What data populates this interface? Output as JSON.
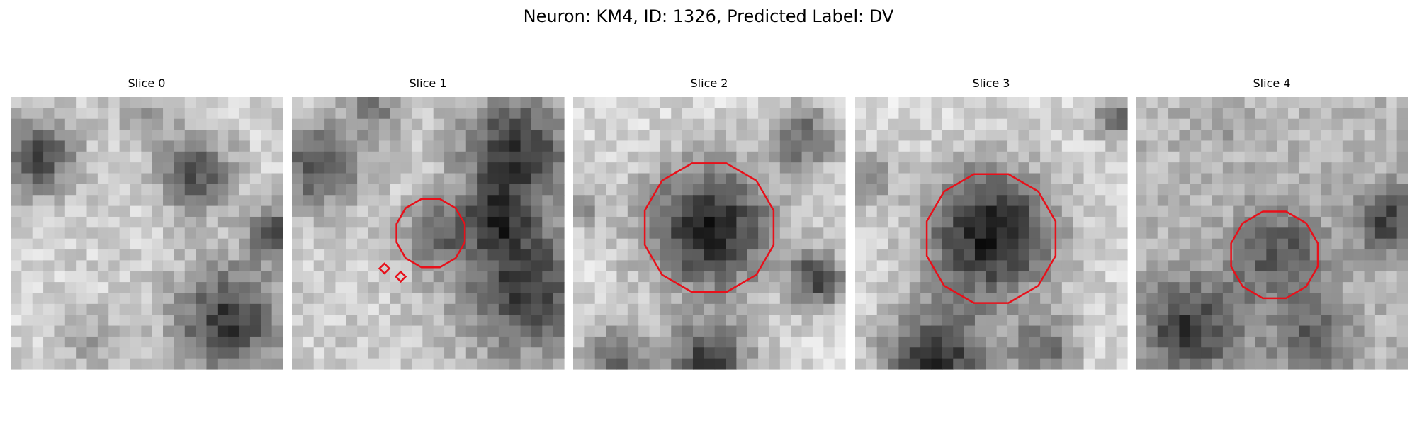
{
  "title": "Neuron: KM4, ID: 1326, Predicted Label: DV",
  "panels": [
    {
      "title": "Slice 0"
    },
    {
      "title": "Slice 1"
    },
    {
      "title": "Slice 2"
    },
    {
      "title": "Slice 3"
    },
    {
      "title": "Slice 4"
    }
  ]
}
